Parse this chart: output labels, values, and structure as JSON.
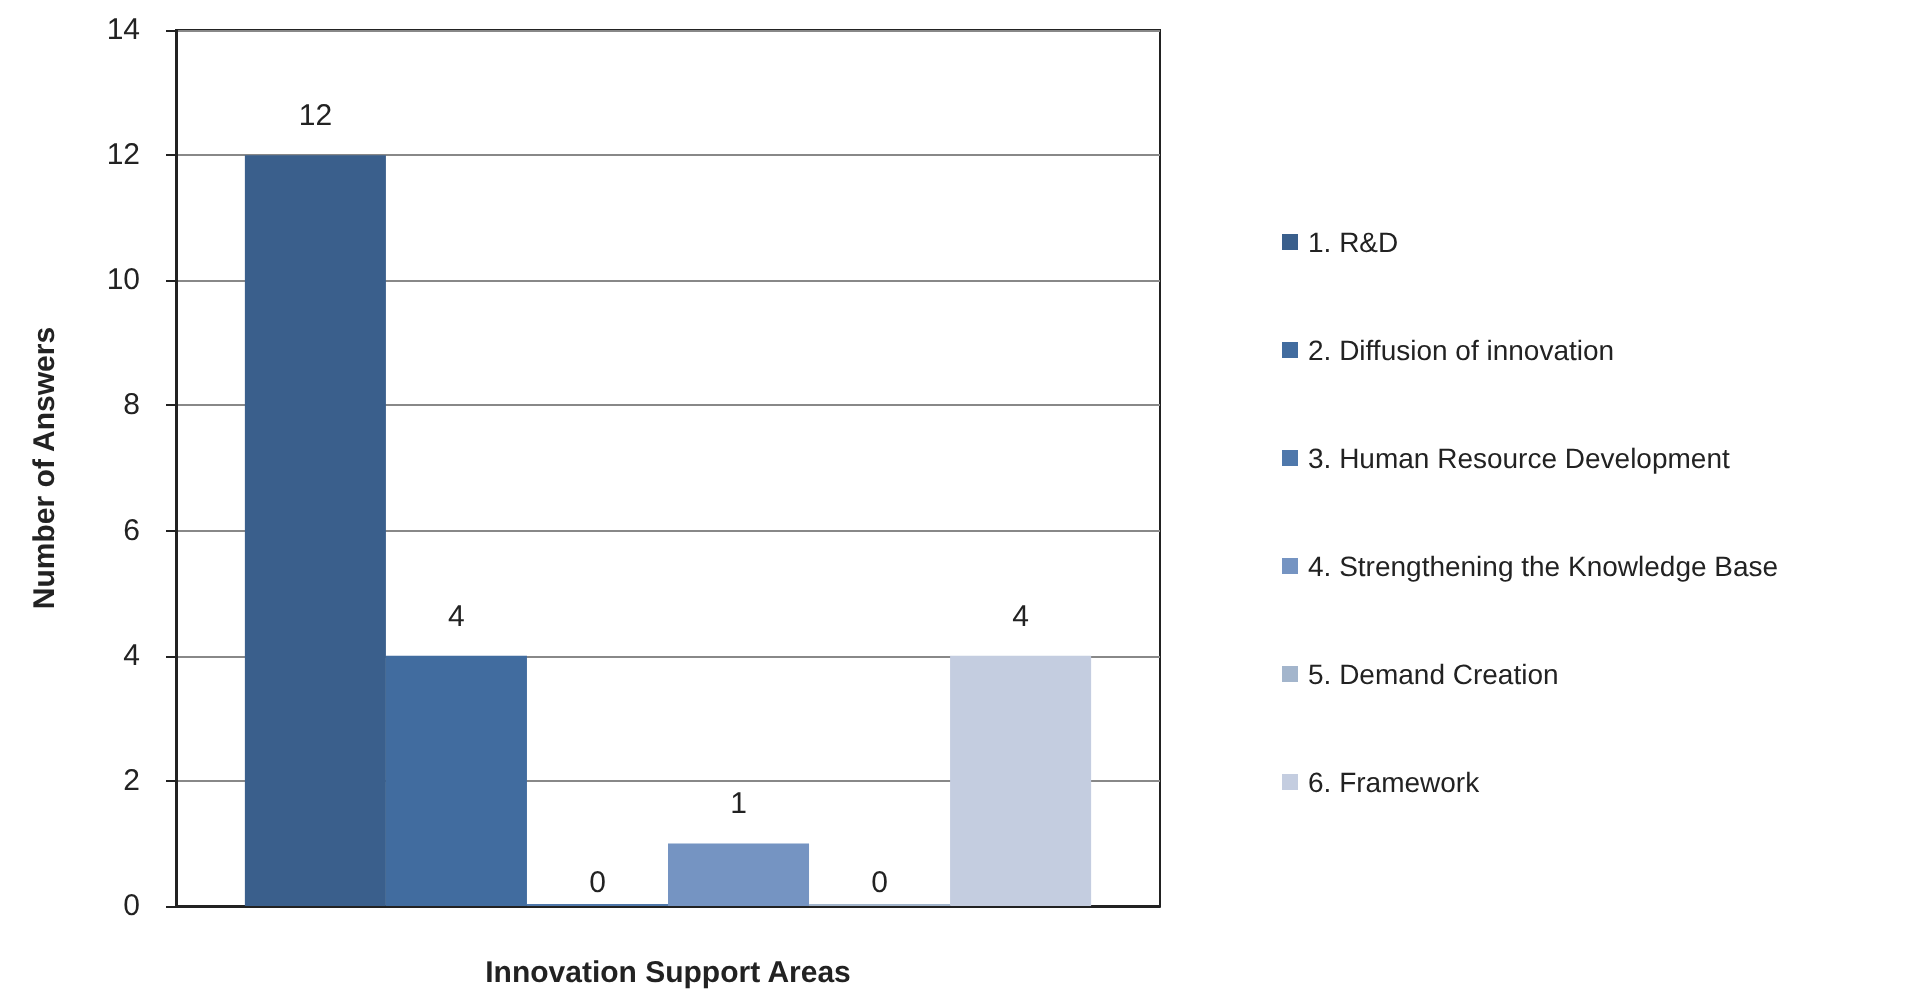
{
  "chart_data": {
    "type": "bar",
    "xlabel": "Innovation Support Areas",
    "ylabel": "Number of Answers",
    "categories": [
      null
    ],
    "series": [
      {
        "name": "1. R&D",
        "color": "#3a5f8c",
        "values": [
          12
        ]
      },
      {
        "name": "2. Diffusion of innovation",
        "color": "#416c9f",
        "values": [
          4
        ]
      },
      {
        "name": "3. Human Resource Development",
        "color": "#4f78ab",
        "values": [
          0
        ]
      },
      {
        "name": "4. Strengthening the Knowledge Base",
        "color": "#7594c2",
        "values": [
          1
        ]
      },
      {
        "name": "5. Demand Creation",
        "color": "#a3b5cc",
        "values": [
          0
        ]
      },
      {
        "name": "6. Framework",
        "color": "#c4cde0",
        "values": [
          4
        ]
      }
    ],
    "ylim": [
      0,
      14
    ],
    "yticks": [
      0,
      2,
      4,
      6,
      8,
      10,
      12,
      14
    ],
    "grid": "y",
    "legend": "right",
    "data_labels": true
  }
}
